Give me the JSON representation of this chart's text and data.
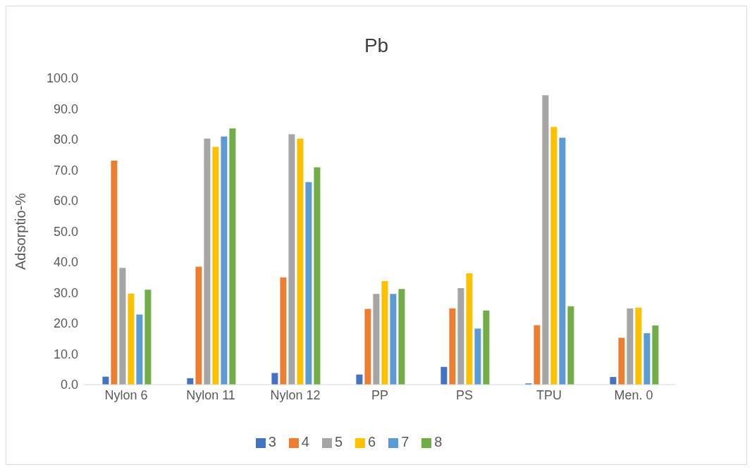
{
  "chart_data": {
    "type": "bar",
    "title": "Pb",
    "ylabel": "Adsorptio-%",
    "categories": [
      "Nylon 6",
      "Nylon 11",
      "Nylon 12",
      "PP",
      "PS",
      "TPU",
      "Men. 0"
    ],
    "series": [
      {
        "name": "3",
        "color": "#4472c4",
        "values": [
          2.6,
          2.1,
          3.8,
          3.3,
          5.8,
          0.4,
          2.5
        ]
      },
      {
        "name": "4",
        "color": "#ed7d31",
        "values": [
          73.1,
          38.5,
          35.0,
          24.7,
          24.9,
          19.4,
          15.3
        ]
      },
      {
        "name": "5",
        "color": "#a5a5a5",
        "values": [
          38.1,
          80.3,
          81.7,
          29.6,
          31.5,
          94.4,
          24.9
        ]
      },
      {
        "name": "6",
        "color": "#ffc000",
        "values": [
          29.7,
          77.6,
          80.3,
          33.8,
          36.3,
          84.1,
          25.1
        ]
      },
      {
        "name": "7",
        "color": "#5b9bd5",
        "values": [
          22.9,
          81.0,
          66.1,
          29.6,
          18.3,
          80.6,
          16.8
        ]
      },
      {
        "name": "8",
        "color": "#70ad47",
        "values": [
          31.0,
          83.6,
          70.9,
          31.2,
          24.2,
          25.6,
          19.3
        ]
      }
    ],
    "ylim": [
      0,
      100
    ],
    "yticks": [
      {
        "value": 0,
        "label": "0.0"
      },
      {
        "value": 10,
        "label": "10.0"
      },
      {
        "value": 20,
        "label": "20.0"
      },
      {
        "value": 30,
        "label": "30.0"
      },
      {
        "value": 40,
        "label": "40.0"
      },
      {
        "value": 50,
        "label": "50.0"
      },
      {
        "value": 60,
        "label": "60.0"
      },
      {
        "value": 70,
        "label": "70.0"
      },
      {
        "value": 80,
        "label": "80.0"
      },
      {
        "value": 90,
        "label": "90.0"
      },
      {
        "value": 100,
        "label": "100.0"
      }
    ],
    "grid": false,
    "legend": "bottom"
  }
}
